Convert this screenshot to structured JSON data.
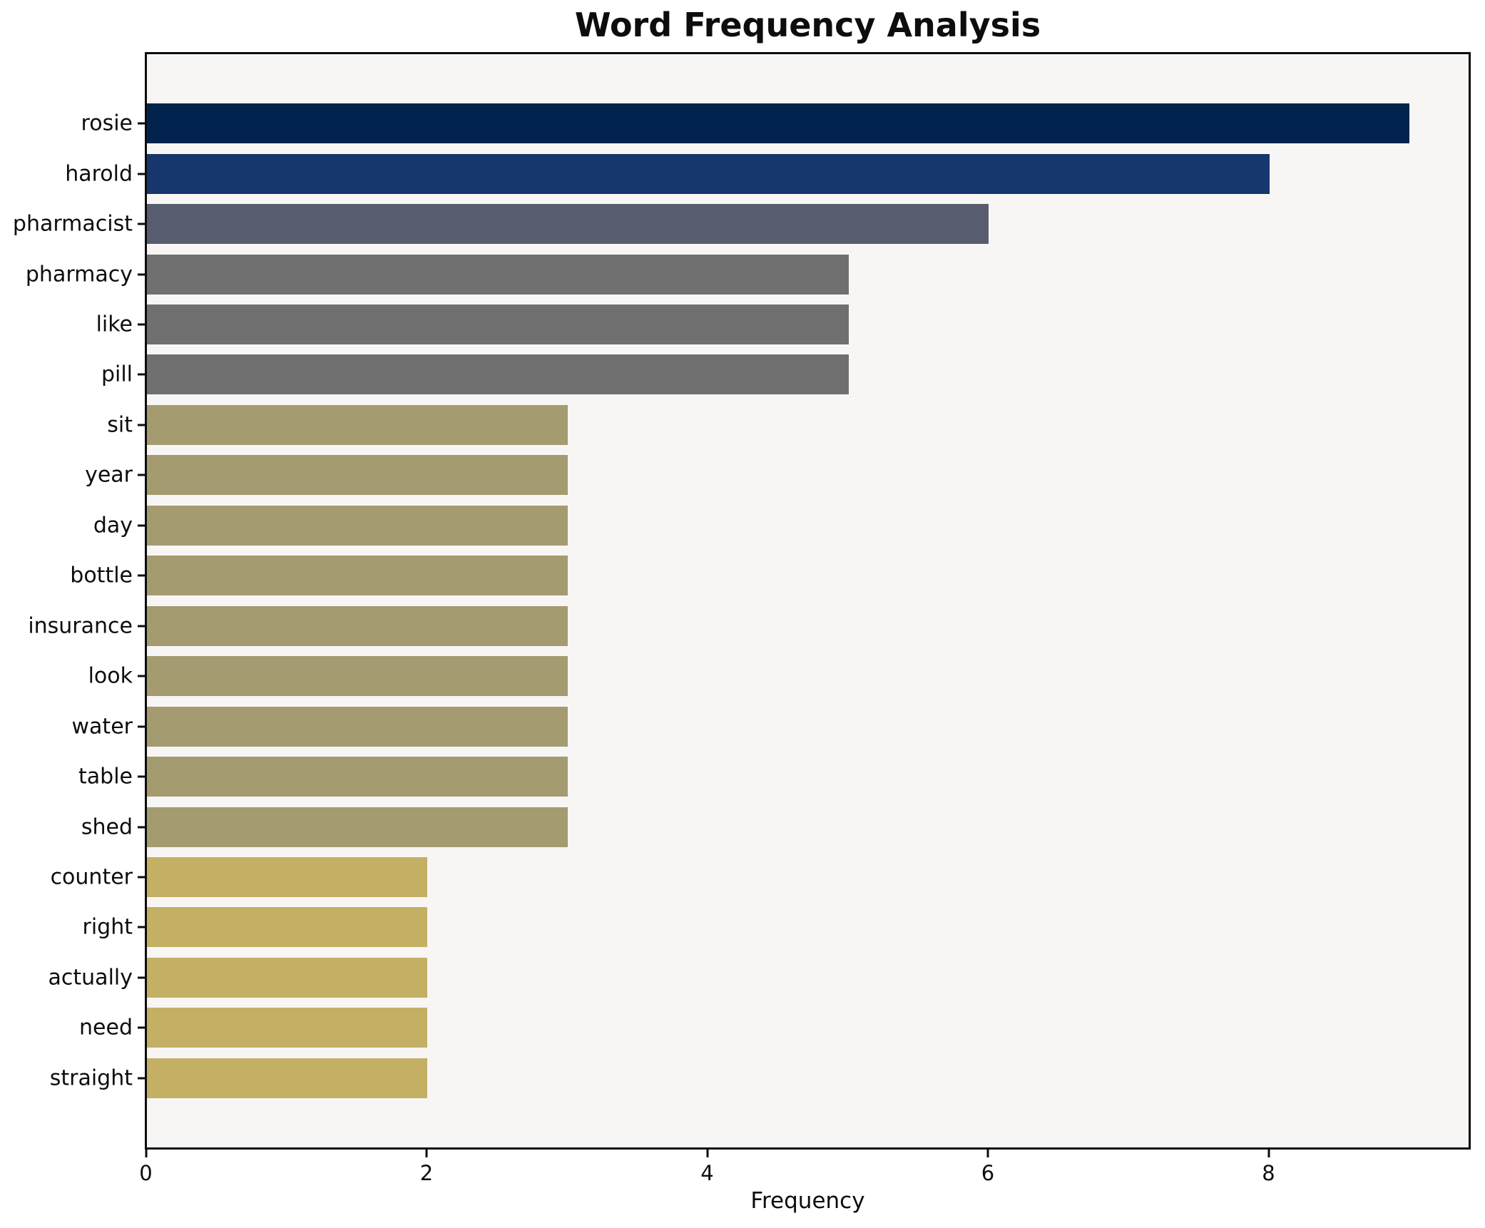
{
  "chart_data": {
    "type": "bar",
    "orientation": "horizontal",
    "title": "Word Frequency Analysis",
    "xlabel": "Frequency",
    "ylabel": "",
    "xlim": [
      0,
      9.42
    ],
    "xticks": [
      0,
      2,
      4,
      6,
      8
    ],
    "xtick_labels": [
      "0",
      "2",
      "4",
      "6",
      "8"
    ],
    "grid": false,
    "legend": "none",
    "categories": [
      "rosie",
      "harold",
      "pharmacist",
      "pharmacy",
      "like",
      "pill",
      "sit",
      "year",
      "day",
      "bottle",
      "insurance",
      "look",
      "water",
      "table",
      "shed",
      "counter",
      "right",
      "actually",
      "need",
      "straight"
    ],
    "values": [
      9,
      8,
      6,
      5,
      5,
      5,
      3,
      3,
      3,
      3,
      3,
      3,
      3,
      3,
      3,
      2,
      2,
      2,
      2,
      2
    ],
    "bar_colors": [
      "#02234e",
      "#17366d",
      "#575d6e",
      "#6f6f70",
      "#6f6f70",
      "#6f6f70",
      "#a49b71",
      "#a49b71",
      "#a49b71",
      "#a49b71",
      "#a49b71",
      "#a49b71",
      "#a49b71",
      "#a49b71",
      "#a49b71",
      "#c3b064",
      "#c3b064",
      "#c3b064",
      "#c3b064",
      "#c3b064"
    ],
    "colors": {
      "plot_background": "#f7f6f4",
      "figure_background": "#ffffff",
      "spine": "#0c0c0c",
      "text": "#0d0d0d"
    }
  }
}
